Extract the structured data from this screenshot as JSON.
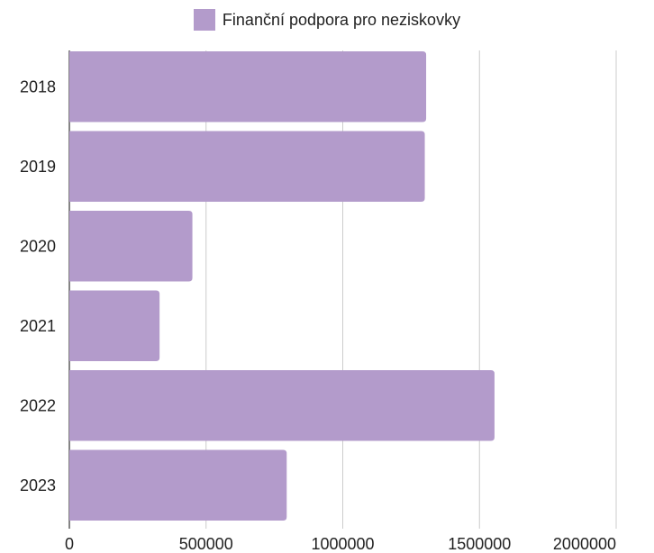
{
  "chart_data": {
    "type": "bar",
    "orientation": "horizontal",
    "categories": [
      "2018",
      "2019",
      "2020",
      "2021",
      "2022",
      "2023"
    ],
    "series": [
      {
        "name": "Finanční podpora pro neziskovky",
        "values": [
          1305000,
          1300000,
          450000,
          330000,
          1555000,
          795000
        ],
        "color": "#b39bcb"
      }
    ],
    "x_ticks": [
      "0",
      "500000",
      "1000000",
      "1500000",
      "2000000"
    ],
    "xlim": [
      0,
      2000000
    ],
    "grid": true,
    "legend_position": "top"
  }
}
